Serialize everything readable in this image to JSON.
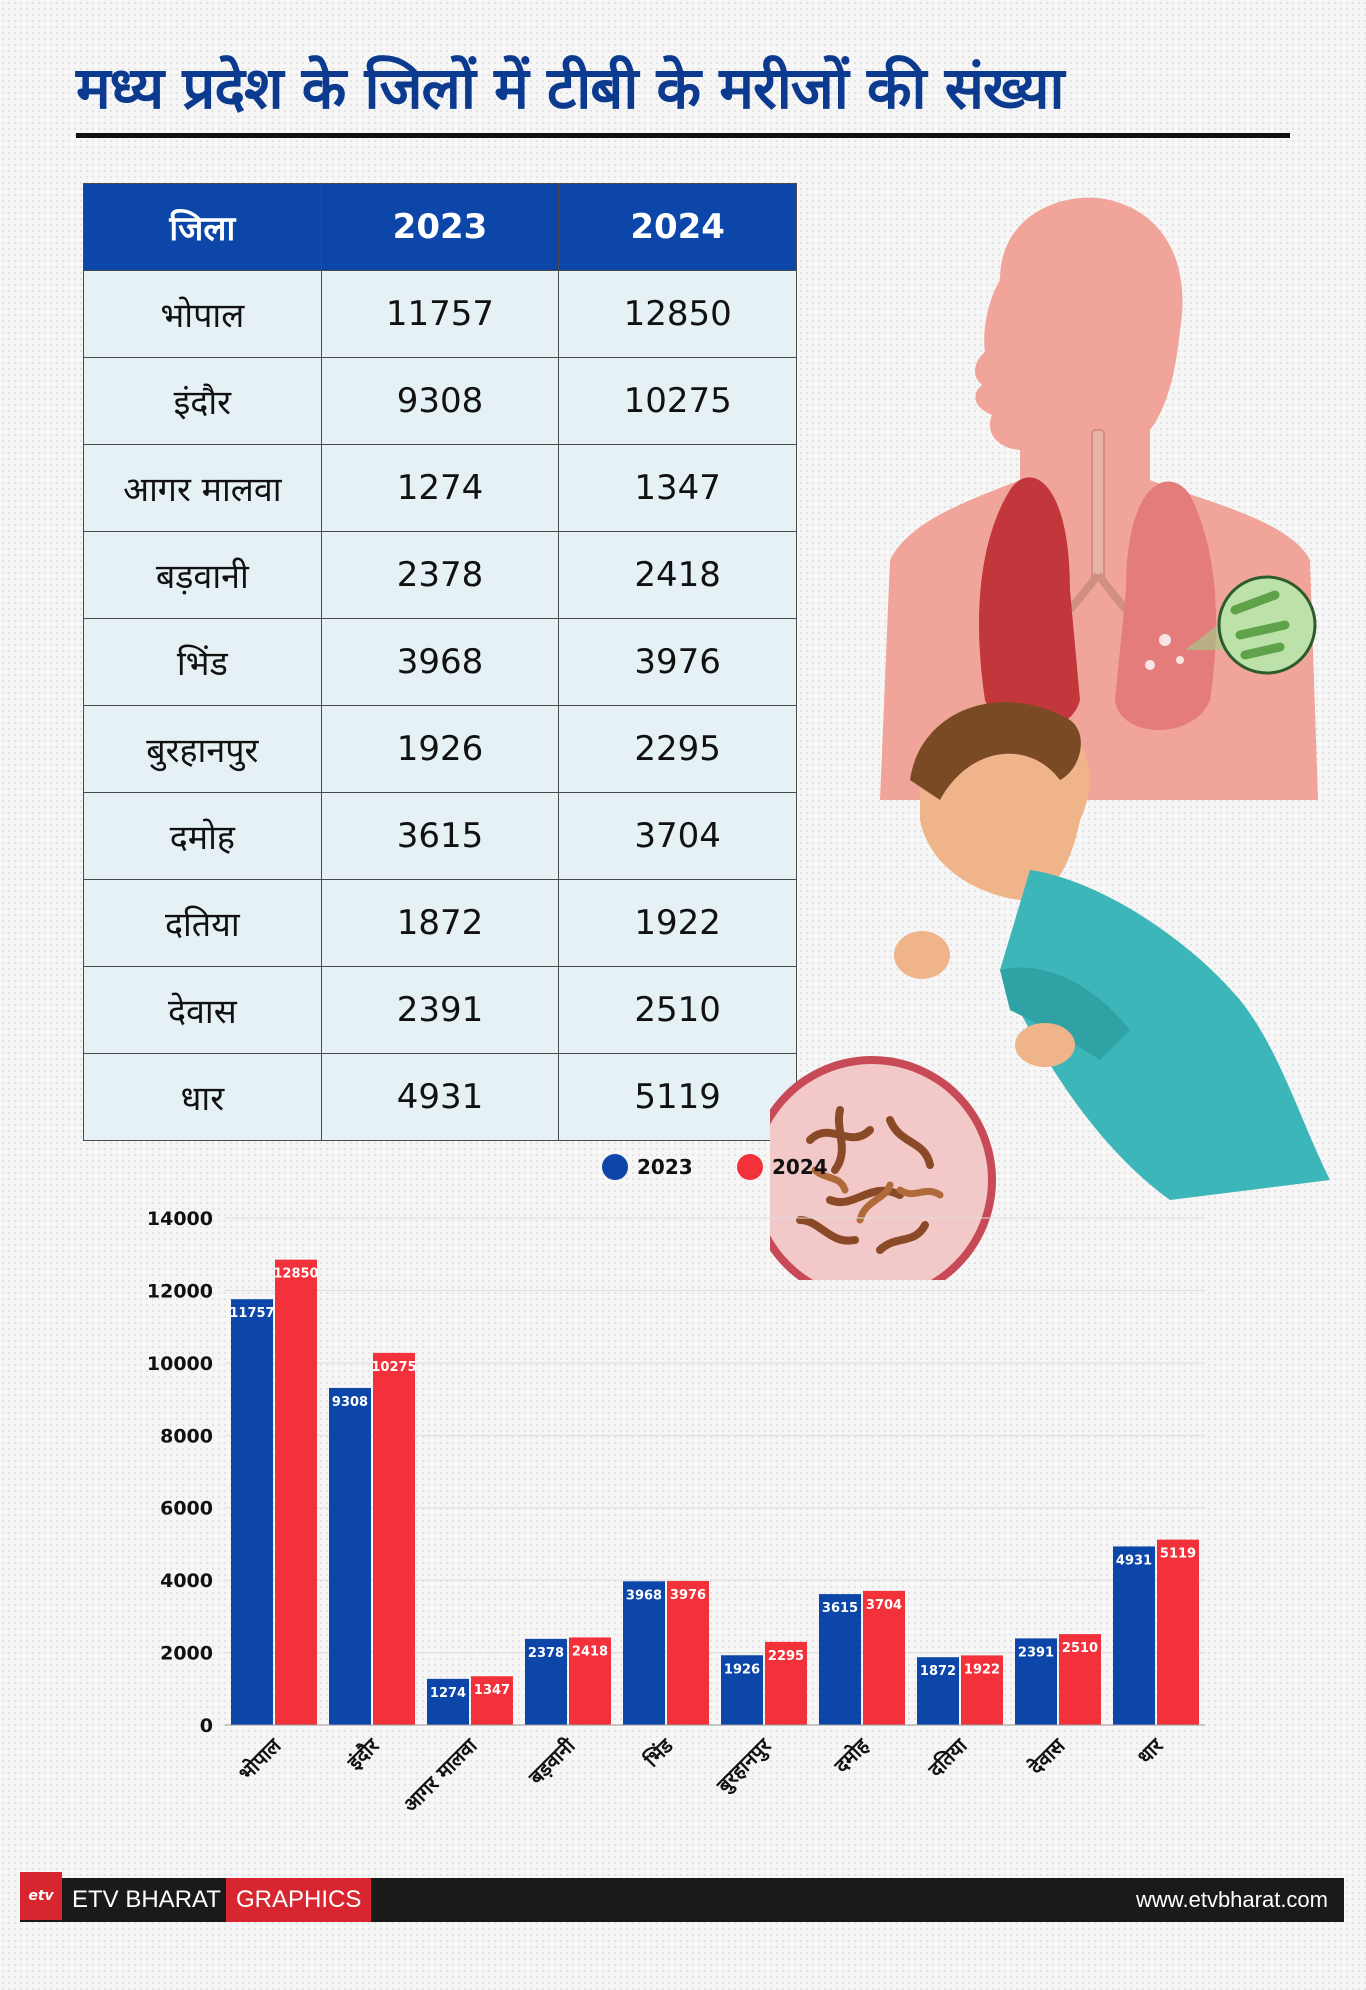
{
  "title": "मध्य प्रदेश के जिलों में टीबी के मरीजों की संख्या",
  "table": {
    "headers": [
      "जिला",
      "2023",
      "2024"
    ],
    "rows": [
      [
        "भोपाल",
        "11757",
        "12850"
      ],
      [
        "इंदौर",
        "9308",
        "10275"
      ],
      [
        "आगर मालवा",
        "1274",
        "1347"
      ],
      [
        "बड़वानी",
        "2378",
        "2418"
      ],
      [
        "भिंड",
        "3968",
        "3976"
      ],
      [
        "बुरहानपुर",
        "1926",
        "2295"
      ],
      [
        "दमोह",
        "3615",
        "3704"
      ],
      [
        "दतिया",
        "1872",
        "1922"
      ],
      [
        "देवास",
        "2391",
        "2510"
      ],
      [
        "धार",
        "4931",
        "5119"
      ]
    ]
  },
  "chart_data": {
    "type": "bar",
    "categories": [
      "भोपाल",
      "इंदौर",
      "आगर मालवा",
      "बड़वानी",
      "भिंड",
      "बुरहानपुर",
      "दमोह",
      "दतिया",
      "देवास",
      "धार"
    ],
    "series": [
      {
        "name": "2023",
        "color": "#0b46a8",
        "values": [
          11757,
          9308,
          1274,
          2378,
          3968,
          1926,
          3615,
          1872,
          2391,
          4931
        ]
      },
      {
        "name": "2024",
        "color": "#f3313a",
        "values": [
          12850,
          10275,
          1347,
          2418,
          3976,
          2295,
          3704,
          1922,
          2510,
          5119
        ]
      }
    ],
    "ylim": [
      0,
      14000
    ],
    "yticks": [
      0,
      2000,
      4000,
      6000,
      8000,
      10000,
      12000,
      14000
    ],
    "grid": true,
    "legend": "top",
    "data_labels": true
  },
  "footer": {
    "logo": "etv",
    "brand": "ETV BHARAT",
    "section": "GRAPHICS",
    "url": "www.etvbharat.com"
  }
}
